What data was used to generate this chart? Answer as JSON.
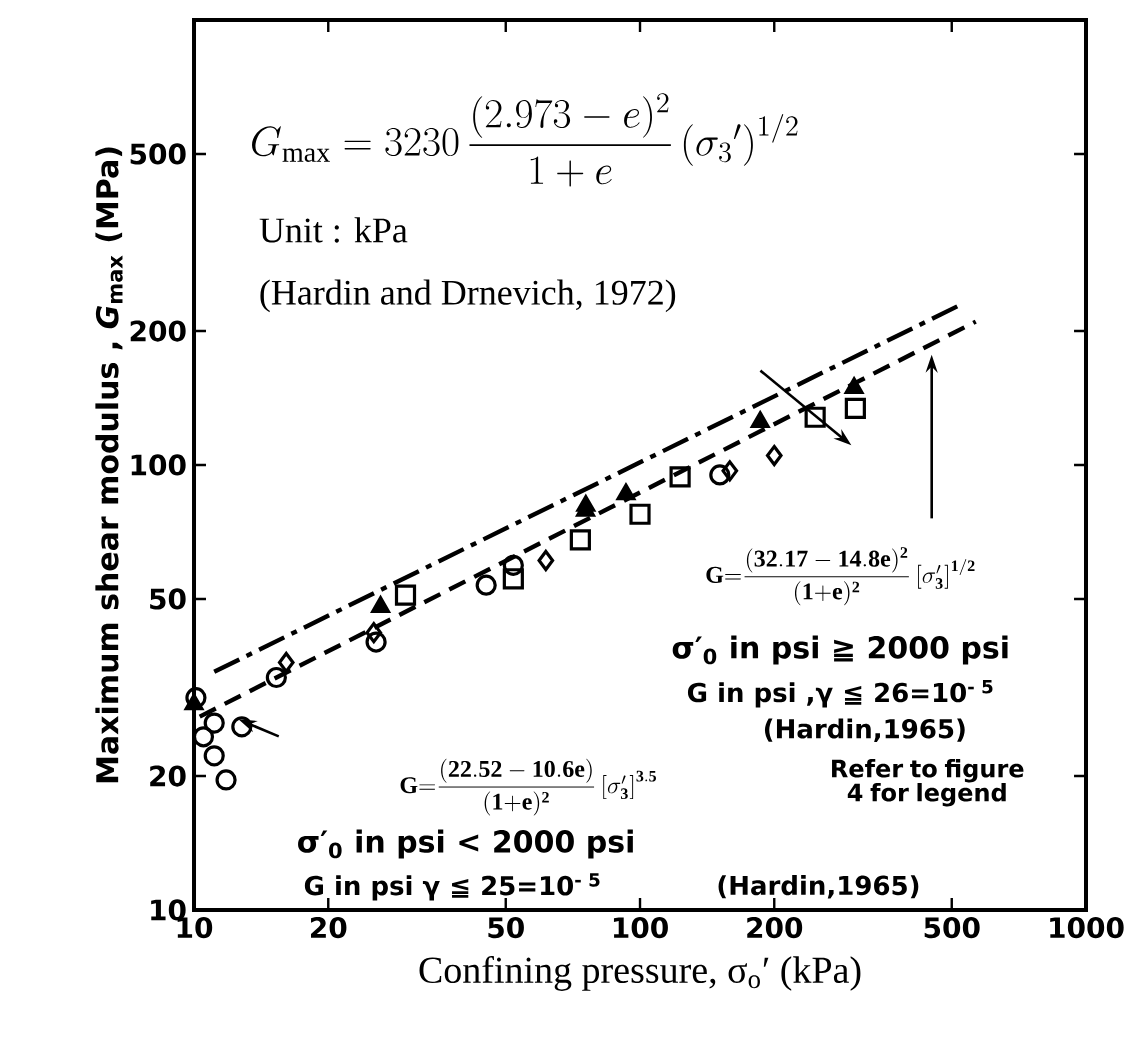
{
  "chart_data": {
    "type": "scatter",
    "xlabel": "Confining pressure, σ$_{o}$′ (kPa)",
    "ylabel": "Maximum  shear modulus ,  *G*$_{max}$ (MPa)",
    "log": "xy",
    "grid": false,
    "xlim": [
      10,
      1000
    ],
    "ylim": [
      10,
      1000
    ],
    "xticks": [
      10,
      20,
      50,
      100,
      200,
      500,
      1000
    ],
    "yticks": [
      10,
      20,
      50,
      100,
      200,
      500
    ],
    "series": [
      {
        "type": "line",
        "line_style": "dashdot",
        "color": "#000000",
        "x": [
          11.1,
          532
        ],
        "values": [
          34.3,
          231
        ]
      },
      {
        "type": "line",
        "line_style": "dashed",
        "color": "#000000",
        "x": [
          10.3,
          566
        ],
        "values": [
          27.2,
          210
        ]
      },
      {
        "marker": "circle",
        "color": "#000000",
        "x": [
          10.1,
          10.5,
          11.1,
          11.1,
          11.8,
          12.8,
          15.3,
          25.6,
          45.2,
          52,
          151
        ],
        "values": [
          30,
          24.5,
          26.3,
          22.2,
          19.6,
          25.8,
          33.3,
          40,
          53.7,
          59.5,
          95
        ]
      },
      {
        "marker": "square",
        "color": "#000000",
        "x": [
          29.8,
          52,
          73.5,
          100,
          123,
          247,
          304
        ],
        "values": [
          51,
          55.5,
          67.9,
          77.5,
          94,
          128,
          134
        ]
      },
      {
        "marker": "diamond",
        "color": "#000000",
        "x": [
          16.1,
          25.3,
          61.5,
          159,
          200
        ],
        "values": [
          36,
          42,
          61,
          97,
          105
        ]
      },
      {
        "marker": "triangle",
        "color": "#000000",
        "x": [
          10,
          26.2,
          75.5,
          75.6,
          93,
          186,
          302
        ],
        "values": [
          29,
          48,
          79,
          81,
          86,
          125,
          149
        ]
      }
    ],
    "annotations": [
      "G_{\\mathrm{max}} = 3230\\,\\dfrac{(2.973-e)^{2}}{1+e}\\left(\\sigma_{3}{}'\\right)^{1/2}",
      "Unit : kPa",
      "(Hardin and Drnevich, 1972)",
      "\\mathbf{G{=}\\dfrac{(32.17 - 14.8e)^{2}}{(1{+}e)^{2}}\\left[\\sigma'_{3}\\right]^{1/2}}",
      "σ′$_{0}$ in psi ≧ 2000 psi",
      "G in psi ,γ ≦ 26=10$^{- 5}$",
      "(Hardin,1965)",
      "Refer to figure 4 for legend",
      "\\mathbf{G{=}\\dfrac{(22.52 - 10.6e)}{(1{+}e)^{2}}\\left[\\sigma'_{3}\\right]^{3.5}}",
      "σ′$_{0}$ in psi < 2000 psi",
      "G in psi   γ ≦ 25=10$^{- 5}$",
      "(Hardin,1965)"
    ]
  }
}
